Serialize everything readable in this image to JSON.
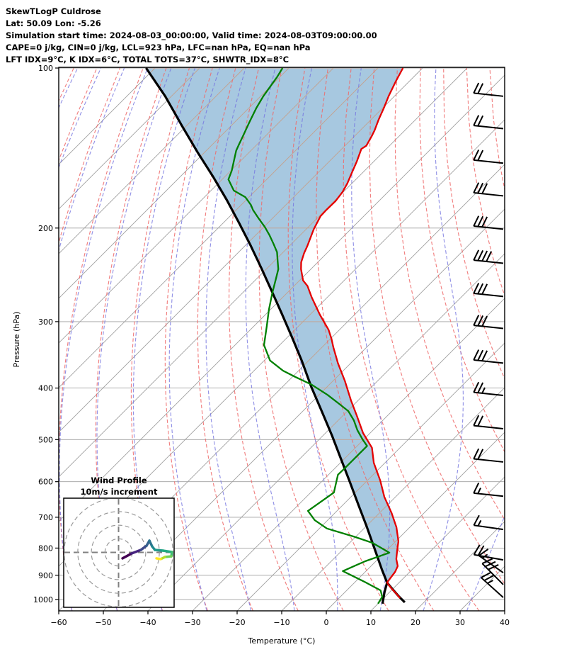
{
  "header": {
    "lines": [
      "SkewTLogP Culdrose",
      "Lat: 50.09   Lon: -5.26",
      "Simulation start time: 2024-08-03_00:00:00, Valid time: 2024-08-03T09:00:00.00",
      "CAPE=0 j/kg, CIN=0 j/kg, LCL=923 hPa, LFC=nan hPa, EQ=nan hPa",
      "LFT IDX=9°C, K IDX=6°C, TOTAL TOTS=37°C, SHWTR_IDX=8°C"
    ]
  },
  "axes": {
    "x_label": "Temperature (°C)",
    "y_label": "Pressure (hPa)",
    "x_tick_values": [
      -60,
      -50,
      -40,
      -30,
      -20,
      -10,
      0,
      10,
      20,
      30,
      40
    ],
    "x_tick_labels": [
      "−60",
      "−50",
      "−40",
      "−30",
      "−20",
      "−10",
      "0",
      "10",
      "20",
      "30",
      "40"
    ],
    "y_tick_values": [
      100,
      200,
      300,
      400,
      500,
      600,
      700,
      800,
      900,
      1000
    ],
    "y_tick_labels": [
      "100",
      "200",
      "300",
      "400",
      "500",
      "600",
      "700",
      "800",
      "900",
      "1000"
    ]
  },
  "colors": {
    "temperature": "#e50000",
    "dewpoint": "#008000",
    "parcel": "#000000",
    "shade": "#a7c8e0",
    "shade_gridlines": "#c4a08c",
    "grid_gray": "#a0a0a0",
    "dry_adiabat": "#ee6a6a",
    "moist_adiabat": "#7777e0",
    "hodo_ring": "#999999",
    "hodo_cross": "#808080",
    "frame": "#000000"
  },
  "chart_data": {
    "type": "line",
    "subtype": "skewt-logp",
    "xlabel": "Temperature (°C)",
    "ylabel": "Pressure (hPa)",
    "xlim": [
      -60,
      40
    ],
    "pressure_range_hPa": [
      100,
      1050
    ],
    "skew_deg": 45,
    "grid": {
      "isotherms_C": {
        "min": -160,
        "max": 40,
        "step": 10
      },
      "dry_adiabats_theta_K": {
        "min": 173,
        "max": 443,
        "step": 10
      },
      "moist_adiabats_start_C": {
        "min": -100,
        "max": 40,
        "step": 10
      },
      "pressure_lines_hPa": {
        "min": 100,
        "max": 1000,
        "step": 100
      }
    },
    "temperature_profile_pT": [
      [
        100,
        -104.4
      ],
      [
        106,
        -103
      ],
      [
        113,
        -101.3
      ],
      [
        119,
        -99.7
      ],
      [
        125,
        -98.3
      ],
      [
        131,
        -96.8
      ],
      [
        134,
        -96.2
      ],
      [
        140,
        -95.2
      ],
      [
        142,
        -95.6
      ],
      [
        150,
        -93.8
      ],
      [
        159,
        -92.1
      ],
      [
        165,
        -91
      ],
      [
        171,
        -90.2
      ],
      [
        178,
        -89.7
      ],
      [
        185,
        -89.8
      ],
      [
        190,
        -89.7
      ],
      [
        201,
        -88.3
      ],
      [
        216,
        -86
      ],
      [
        223,
        -85.1
      ],
      [
        232,
        -83.7
      ],
      [
        239,
        -82.2
      ],
      [
        251,
        -79.2
      ],
      [
        257,
        -77
      ],
      [
        270,
        -73.5
      ],
      [
        291,
        -67.8
      ],
      [
        311,
        -62.4
      ],
      [
        323,
        -59.8
      ],
      [
        335,
        -57.5
      ],
      [
        359,
        -52.9
      ],
      [
        388,
        -47.3
      ],
      [
        422,
        -41.6
      ],
      [
        450,
        -37
      ],
      [
        486,
        -31.6
      ],
      [
        518,
        -26.3
      ],
      [
        553,
        -22.5
      ],
      [
        597,
        -17.1
      ],
      [
        641,
        -12.5
      ],
      [
        687,
        -7.3
      ],
      [
        731,
        -3
      ],
      [
        777,
        0.6
      ],
      [
        809,
        2.4
      ],
      [
        839,
        4.1
      ],
      [
        865,
        6
      ],
      [
        887,
        6.7
      ],
      [
        909,
        7
      ],
      [
        929,
        7.3
      ],
      [
        952,
        9.5
      ],
      [
        972,
        11.6
      ],
      [
        994,
        13.7
      ]
    ],
    "dewpoint_profile_pT": [
      [
        100,
        -131.4
      ],
      [
        104,
        -130.6
      ],
      [
        113,
        -129.4
      ],
      [
        119,
        -128.3
      ],
      [
        126,
        -126.8
      ],
      [
        135,
        -124.9
      ],
      [
        139,
        -124.1
      ],
      [
        143,
        -123.3
      ],
      [
        156,
        -119.8
      ],
      [
        162,
        -118.6
      ],
      [
        170,
        -114.9
      ],
      [
        175,
        -110.8
      ],
      [
        181,
        -107.8
      ],
      [
        185,
        -106.2
      ],
      [
        192,
        -103
      ],
      [
        199,
        -99.8
      ],
      [
        206,
        -97
      ],
      [
        214,
        -94.1
      ],
      [
        222,
        -91.4
      ],
      [
        231,
        -89.2
      ],
      [
        239,
        -87.3
      ],
      [
        249,
        -85.7
      ],
      [
        265,
        -83.3
      ],
      [
        285,
        -80.3
      ],
      [
        306,
        -77.1
      ],
      [
        332,
        -73.5
      ],
      [
        355,
        -68.7
      ],
      [
        371,
        -63.5
      ],
      [
        381,
        -59.4
      ],
      [
        394,
        -54
      ],
      [
        412,
        -48.1
      ],
      [
        429,
        -43.3
      ],
      [
        442,
        -39.8
      ],
      [
        460,
        -36.5
      ],
      [
        480,
        -33.5
      ],
      [
        500,
        -30.2
      ],
      [
        514,
        -27.8
      ],
      [
        568,
        -27.8
      ],
      [
        582,
        -27.9
      ],
      [
        629,
        -24.8
      ],
      [
        681,
        -26.5
      ],
      [
        709,
        -22.9
      ],
      [
        735,
        -18.3
      ],
      [
        761,
        -10.5
      ],
      [
        782,
        -4.9
      ],
      [
        816,
        1.1
      ],
      [
        847,
        -2.4
      ],
      [
        884,
        -5.2
      ],
      [
        926,
        2.1
      ],
      [
        961,
        7.6
      ],
      [
        988,
        9.4
      ],
      [
        1018,
        10
      ]
    ],
    "parcel_profile_pT": [
      [
        100,
        -162
      ],
      [
        113,
        -151.4
      ],
      [
        128,
        -141.3
      ],
      [
        144,
        -131.6
      ],
      [
        160,
        -122.7
      ],
      [
        177,
        -114.4
      ],
      [
        196,
        -106.3
      ],
      [
        216,
        -98.7
      ],
      [
        238,
        -91.3
      ],
      [
        263,
        -83.8
      ],
      [
        290,
        -76.5
      ],
      [
        320,
        -69.2
      ],
      [
        355,
        -61.6
      ],
      [
        397,
        -53.7
      ],
      [
        443,
        -45.6
      ],
      [
        492,
        -37.9
      ],
      [
        541,
        -31.1
      ],
      [
        599,
        -23.8
      ],
      [
        661,
        -16.8
      ],
      [
        729,
        -9.8
      ],
      [
        801,
        -3.2
      ],
      [
        879,
        3.3
      ],
      [
        929,
        7.3
      ],
      [
        961,
        10.5
      ],
      [
        985,
        12.9
      ],
      [
        1012,
        15.7
      ]
    ],
    "parcel_spur_pT": [
      [
        929,
        7.3
      ],
      [
        969,
        8.9
      ],
      [
        1018,
        11
      ]
    ],
    "shade_merge_pressure_hPa": 930,
    "wind_barbs": [
      {
        "p": 113,
        "speed": 20,
        "tilt": 6
      },
      {
        "p": 130,
        "speed": 20,
        "tilt": 6
      },
      {
        "p": 151,
        "speed": 20,
        "tilt": 6
      },
      {
        "p": 174,
        "speed": 30,
        "tilt": 6
      },
      {
        "p": 201,
        "speed": 30,
        "tilt": 6
      },
      {
        "p": 233,
        "speed": 40,
        "tilt": 6
      },
      {
        "p": 269,
        "speed": 30,
        "tilt": 6
      },
      {
        "p": 309,
        "speed": 30,
        "tilt": 6
      },
      {
        "p": 359,
        "speed": 30,
        "tilt": 6
      },
      {
        "p": 413,
        "speed": 25,
        "tilt": 6
      },
      {
        "p": 477,
        "speed": 20,
        "tilt": 6
      },
      {
        "p": 551,
        "speed": 20,
        "tilt": 6
      },
      {
        "p": 639,
        "speed": 15,
        "tilt": 6
      },
      {
        "p": 738,
        "speed": 15,
        "tilt": 8
      },
      {
        "p": 842,
        "speed": 20,
        "tilt": 10
      },
      {
        "p": 890,
        "speed": 15,
        "tilt": 35
      },
      {
        "p": 937,
        "speed": 30,
        "tilt": 45
      },
      {
        "p": 991,
        "speed": 25,
        "tilt": 42
      }
    ],
    "hodograph": {
      "title": "Wind Profile",
      "subtitle": "10m/s increment",
      "ring_increment_ms": 10,
      "rings_ms": [
        10,
        20,
        30,
        40
      ],
      "trace_uv_ms": [
        [
          2.9,
          -4.4
        ],
        [
          9.6,
          -0.8
        ],
        [
          16.4,
          1.8
        ],
        [
          20.6,
          4.9
        ],
        [
          22.7,
          8.6
        ],
        [
          24.7,
          4.4
        ],
        [
          26.8,
          1.8
        ],
        [
          32.6,
          1.3
        ],
        [
          39.3,
          0.3
        ],
        [
          38.8,
          -2.9
        ],
        [
          34.1,
          -3.4
        ],
        [
          31,
          -4.9
        ],
        [
          27.9,
          -4.4
        ]
      ],
      "segment_colors": [
        "#440154",
        "#46237e",
        "#3e4a89",
        "#34618d",
        "#2b748e",
        "#23878e",
        "#1f998a",
        "#25ab82",
        "#40bd72",
        "#73d056",
        "#b5de2b",
        "#fde725"
      ]
    }
  }
}
